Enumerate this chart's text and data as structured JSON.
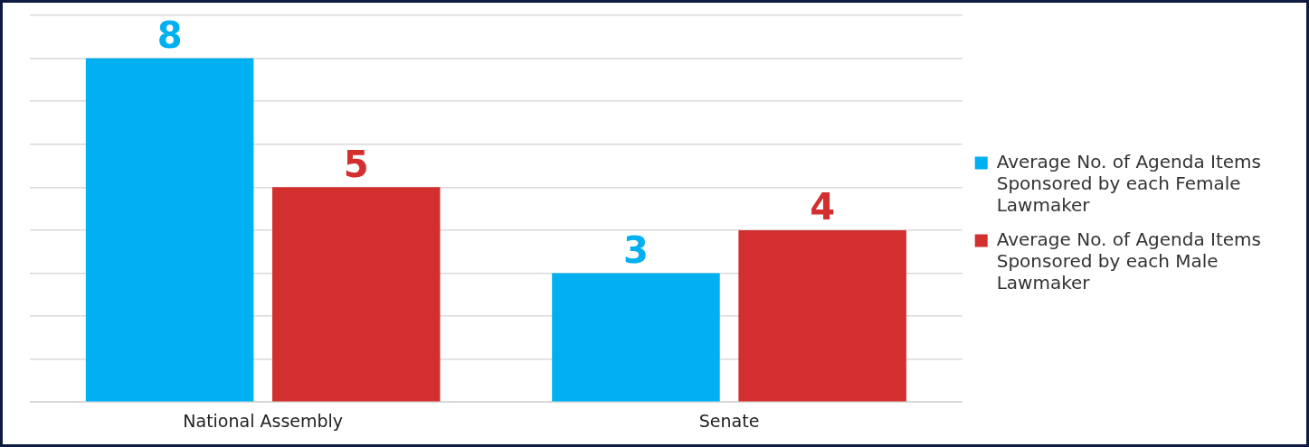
{
  "chart_data": {
    "type": "bar",
    "categories": [
      "National Assembly",
      "Senate"
    ],
    "series": [
      {
        "name": "Average No. of Agenda Items Sponsored by each Female Lawmaker",
        "color": "#00b0f0",
        "values": [
          8,
          3
        ]
      },
      {
        "name": "Average No. of Agenda Items Sponsored by each Male Lawmaker",
        "color": "#d32f2f",
        "values": [
          5,
          4
        ]
      }
    ],
    "ylim": [
      0,
      9
    ],
    "yticks": [
      {
        "value": 0,
        "label": null
      },
      {
        "value": 1,
        "label": null
      },
      {
        "value": 2,
        "label": null
      },
      {
        "value": 3,
        "label": null
      },
      {
        "value": 4,
        "label": null
      },
      {
        "value": 5,
        "label": null
      },
      {
        "value": 6,
        "label": null
      },
      {
        "value": 7,
        "label": null
      },
      {
        "value": 8,
        "label": null
      },
      {
        "value": 9,
        "label": null
      }
    ],
    "grid": "y",
    "legend": "right",
    "tick_labels": "x",
    "data_labels": true
  }
}
